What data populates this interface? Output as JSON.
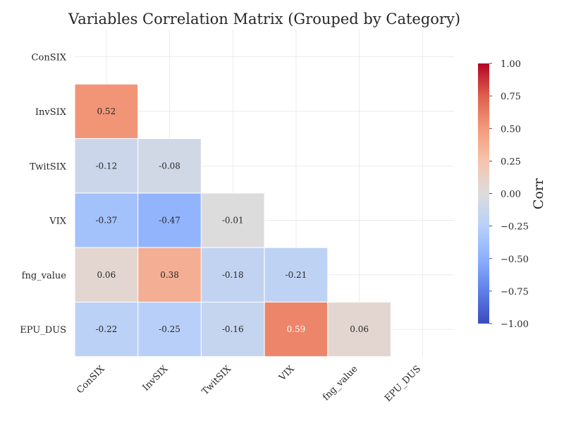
{
  "chart_data": {
    "type": "heatmap",
    "title": "Variables Correlation Matrix (Grouped by Category)",
    "variables": [
      "ConSIX",
      "InvSIX",
      "TwitSIX",
      "VIX",
      "fng_value",
      "EPU_DUS"
    ],
    "mask": "upper-triangle-including-diagonal",
    "cells": [
      {
        "row": "InvSIX",
        "col": "ConSIX",
        "value": 0.52
      },
      {
        "row": "TwitSIX",
        "col": "ConSIX",
        "value": -0.12
      },
      {
        "row": "TwitSIX",
        "col": "InvSIX",
        "value": -0.08
      },
      {
        "row": "VIX",
        "col": "ConSIX",
        "value": -0.37
      },
      {
        "row": "VIX",
        "col": "InvSIX",
        "value": -0.47
      },
      {
        "row": "VIX",
        "col": "TwitSIX",
        "value": -0.01
      },
      {
        "row": "fng_value",
        "col": "ConSIX",
        "value": 0.06
      },
      {
        "row": "fng_value",
        "col": "InvSIX",
        "value": 0.38
      },
      {
        "row": "fng_value",
        "col": "TwitSIX",
        "value": -0.18
      },
      {
        "row": "fng_value",
        "col": "VIX",
        "value": -0.21
      },
      {
        "row": "EPU_DUS",
        "col": "ConSIX",
        "value": -0.22
      },
      {
        "row": "EPU_DUS",
        "col": "InvSIX",
        "value": -0.25
      },
      {
        "row": "EPU_DUS",
        "col": "TwitSIX",
        "value": -0.16
      },
      {
        "row": "EPU_DUS",
        "col": "VIX",
        "value": 0.59
      },
      {
        "row": "EPU_DUS",
        "col": "fng_value",
        "value": 0.06
      }
    ],
    "colorbar": {
      "label": "Corr",
      "range": [
        -1.0,
        1.0
      ],
      "ticks": [
        "1.00",
        "0.75",
        "0.50",
        "0.25",
        "0.00",
        "−0.25",
        "−0.50",
        "−0.75",
        "−1.00"
      ],
      "colormap": "coolwarm"
    },
    "grid": true
  }
}
